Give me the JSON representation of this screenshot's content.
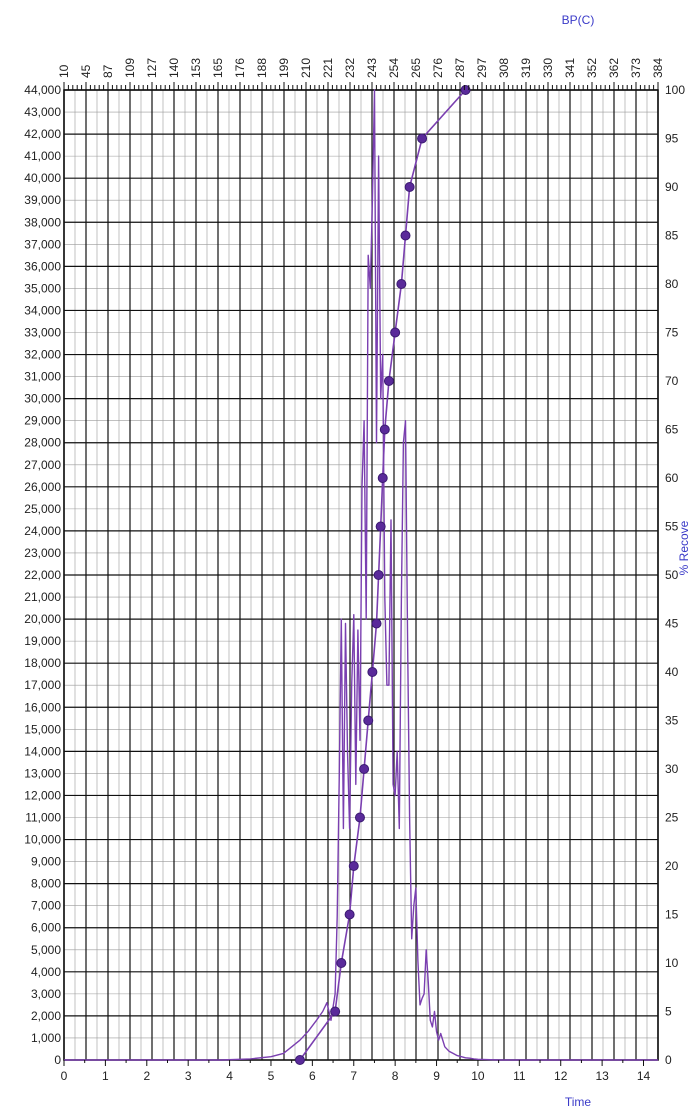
{
  "chart_data": {
    "type": "line",
    "x_title": "Time",
    "x2_title": "BP(C)",
    "y2_title": "% Recove",
    "x_ticks": [
      "0",
      "1",
      "2",
      "3",
      "4",
      "5",
      "6",
      "7",
      "8",
      "9",
      "10",
      "11",
      "12",
      "13",
      "14"
    ],
    "x2_ticks": [
      "10",
      "45",
      "87",
      "109",
      "127",
      "140",
      "153",
      "165",
      "176",
      "188",
      "199",
      "210",
      "221",
      "232",
      "243",
      "254",
      "265",
      "276",
      "287",
      "297",
      "308",
      "319",
      "330",
      "341",
      "352",
      "362",
      "373",
      "384"
    ],
    "y_ticks": [
      "0",
      "1,000",
      "2,000",
      "3,000",
      "4,000",
      "5,000",
      "6,000",
      "7,000",
      "8,000",
      "9,000",
      "10,000",
      "11,000",
      "12,000",
      "13,000",
      "14,000",
      "15,000",
      "16,000",
      "17,000",
      "18,000",
      "19,000",
      "20,000",
      "21,000",
      "22,000",
      "23,000",
      "24,000",
      "25,000",
      "26,000",
      "27,000",
      "28,000",
      "29,000",
      "30,000",
      "31,000",
      "32,000",
      "33,000",
      "34,000",
      "35,000",
      "36,000",
      "37,000",
      "38,000",
      "39,000",
      "40,000",
      "41,000",
      "42,000",
      "43,000",
      "44,000"
    ],
    "y2_ticks": [
      "0",
      "5",
      "10",
      "15",
      "20",
      "25",
      "30",
      "35",
      "40",
      "45",
      "50",
      "55",
      "60",
      "65",
      "70",
      "75",
      "80",
      "85",
      "90",
      "95",
      "100"
    ],
    "xlim": [
      0,
      14.35
    ],
    "ylim": [
      0,
      44000
    ],
    "y2lim": [
      0,
      100
    ],
    "grid": true,
    "colors": {
      "series": "#7a3fb0",
      "markers": "#5a2a9a",
      "axis_titles": "#3a3ac8",
      "grid_major": "#111111",
      "grid_minor": "#9a9a9a"
    },
    "series": [
      {
        "values_x": [
          0,
          3.8,
          4.5,
          5.0,
          5.3,
          5.5,
          5.7,
          5.9,
          6.1,
          6.25,
          6.35,
          6.45,
          6.55,
          6.6,
          6.65,
          6.7,
          6.75,
          6.8,
          6.85,
          6.9,
          6.95,
          7.0,
          7.05,
          7.1,
          7.15,
          7.2,
          7.25,
          7.3,
          7.35,
          7.4,
          7.45,
          7.5,
          7.55,
          7.6,
          7.65,
          7.7,
          7.75,
          7.8,
          7.85,
          7.9,
          7.95,
          8.0,
          8.05,
          8.1,
          8.15,
          8.2,
          8.25,
          8.3,
          8.35,
          8.4,
          8.45,
          8.5,
          8.55,
          8.6,
          8.65,
          8.7,
          8.75,
          8.8,
          8.85,
          8.9,
          8.95,
          9.0,
          9.05,
          9.1,
          9.2,
          9.3,
          9.4,
          9.5,
          9.6,
          9.7,
          9.8,
          9.9,
          10.0,
          10.2,
          10.5,
          11.0,
          12.0,
          14.35
        ],
        "values_y": [
          0,
          0,
          50,
          150,
          300,
          600,
          900,
          1300,
          1800,
          2200,
          2600,
          1800,
          3000,
          6500,
          13000,
          20000,
          10500,
          19800,
          14000,
          10500,
          17000,
          20200,
          12500,
          19500,
          14500,
          26000,
          29000,
          20000,
          36500,
          35000,
          39000,
          44000,
          28000,
          41000,
          30000,
          32000,
          21000,
          17000,
          17000,
          24500,
          12500,
          12000,
          14000,
          10500,
          21000,
          28000,
          29000,
          19000,
          11000,
          5500,
          7000,
          7800,
          4500,
          2500,
          2800,
          3000,
          5000,
          3500,
          1800,
          1500,
          2200,
          1300,
          900,
          1200,
          600,
          400,
          300,
          200,
          150,
          100,
          80,
          50,
          30,
          20,
          0,
          0,
          0,
          0
        ]
      },
      {
        "name": "",
        "values_x": [
          5.7,
          6.55,
          6.7,
          6.9,
          7.0,
          7.15,
          7.25,
          7.35,
          7.45,
          7.55,
          7.6,
          7.65,
          7.7,
          7.75,
          7.85,
          8.0,
          8.15,
          8.25,
          8.35,
          8.65,
          9.7
        ],
        "values_y": [
          0,
          5,
          10,
          15,
          20,
          25,
          30,
          35,
          40,
          45,
          50,
          55,
          60,
          65,
          70,
          75,
          80,
          85,
          90,
          95,
          100
        ]
      }
    ]
  }
}
